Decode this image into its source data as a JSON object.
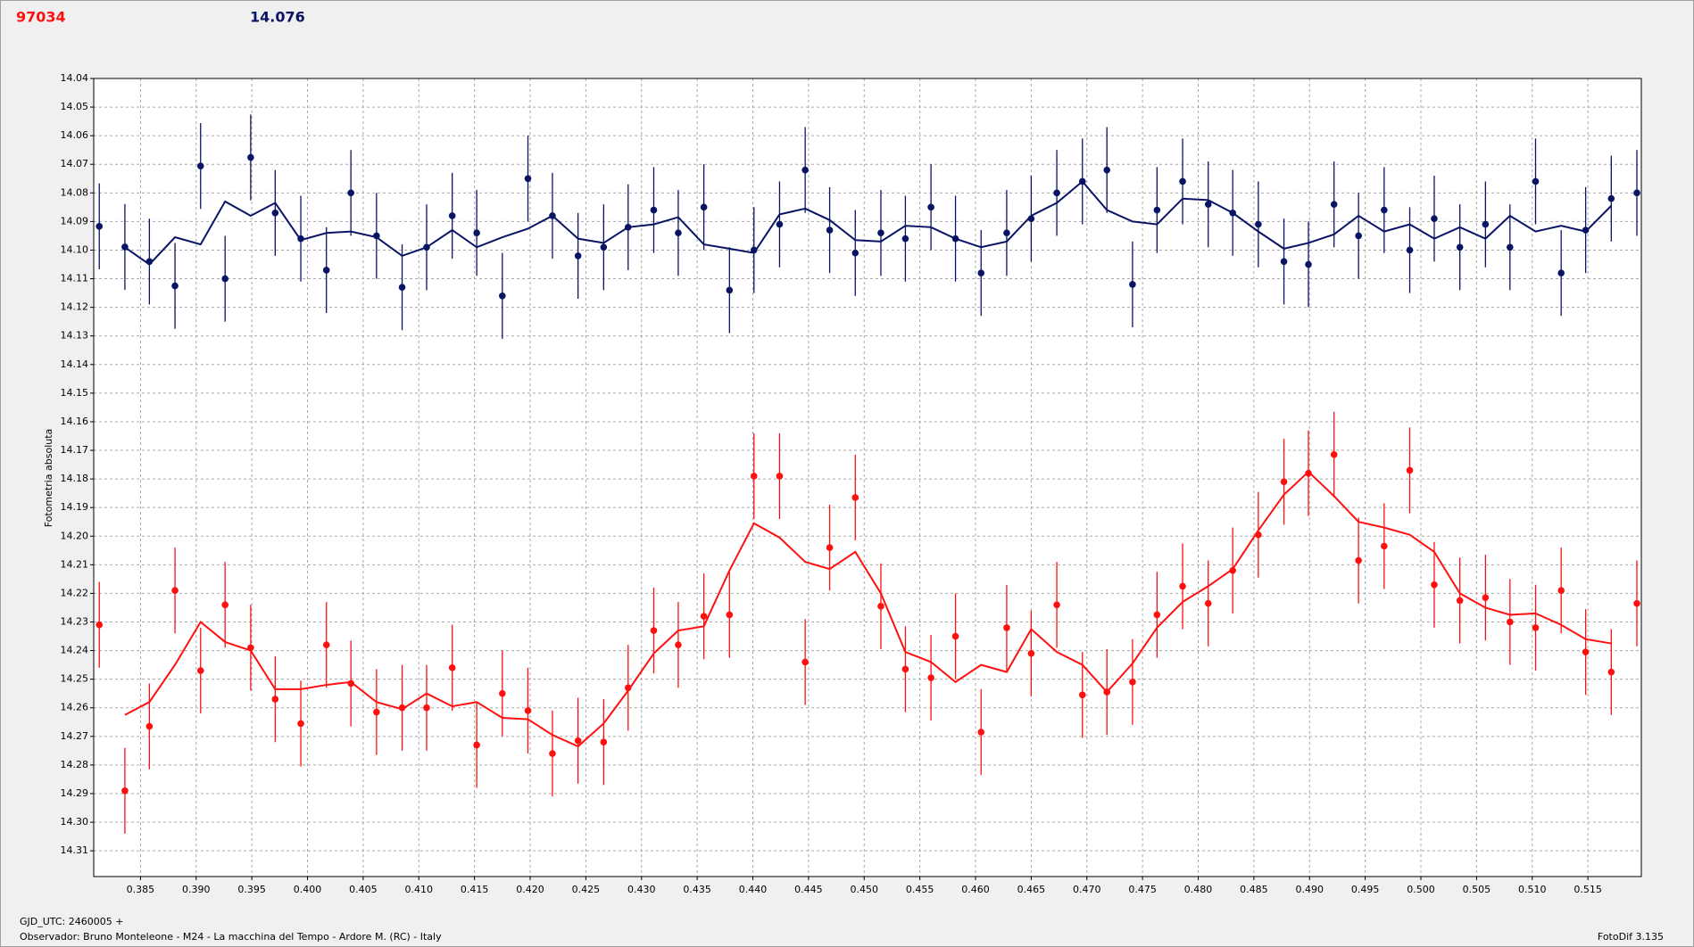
{
  "chart_data": {
    "type": "scatter",
    "header_left": "97034",
    "header_right": "14.076",
    "ylabel": "Fotometria absoluta",
    "xlabel": "GJD_UTC: 2460005 +",
    "footer_observer": "Observador: Bruno Monteleone - M24 - La macchina del Tempo - Ardore M. (RC) - Italy",
    "footer_software": "FotoDif 3.135",
    "xlim": [
      0.3808,
      0.5198
    ],
    "ylim": [
      14.319,
      14.04
    ],
    "grid": true,
    "x": [
      0.3813,
      0.3836,
      0.3858,
      0.3881,
      0.3904,
      0.3926,
      0.3949,
      0.3971,
      0.3994,
      0.4017,
      0.4039,
      0.4062,
      0.4085,
      0.4107,
      0.413,
      0.4152,
      0.4175,
      0.4198,
      0.422,
      0.4243,
      0.4266,
      0.4288,
      0.4311,
      0.4333,
      0.4356,
      0.4379,
      0.4401,
      0.4424,
      0.4447,
      0.4469,
      0.4492,
      0.4515,
      0.4537,
      0.456,
      0.4582,
      0.4605,
      0.4628,
      0.465,
      0.4673,
      0.4696,
      0.4718,
      0.4741,
      0.4763,
      0.4786,
      0.4809,
      0.4831,
      0.4854,
      0.4877,
      0.4899,
      0.4922,
      0.4944,
      0.4967,
      0.499,
      0.5012,
      0.5035,
      0.5058,
      0.508,
      0.5103,
      0.5126,
      0.5148,
      0.5171,
      0.5194
    ],
    "xticks": [
      0.385,
      {
        "value": 0.39,
        "label": "0.390"
      },
      0.395,
      {
        "value": 0.4,
        "label": "0.400"
      },
      0.405,
      {
        "value": 0.41,
        "label": "0.410"
      },
      0.415,
      {
        "value": 0.42,
        "label": "0.420"
      },
      0.425,
      {
        "value": 0.43,
        "label": "0.430"
      },
      0.435,
      {
        "value": 0.44,
        "label": "0.440"
      },
      0.445,
      {
        "value": 0.45,
        "label": "0.450"
      },
      0.455,
      {
        "value": 0.46,
        "label": "0.460"
      },
      0.465,
      {
        "value": 0.47,
        "label": "0.470"
      },
      0.475,
      {
        "value": 0.48,
        "label": "0.480"
      },
      0.485,
      {
        "value": 0.49,
        "label": "0.490"
      },
      0.495,
      {
        "value": 0.5,
        "label": "0.500"
      },
      0.505,
      {
        "value": 0.51,
        "label": "0.510"
      },
      0.515
    ],
    "yticks": [
      14.04,
      14.05,
      14.06,
      14.07,
      14.08,
      14.09,
      {
        "value": 14.1,
        "label": "14.10"
      },
      14.11,
      14.12,
      14.13,
      14.14,
      14.15,
      14.16,
      14.17,
      14.18,
      14.19,
      {
        "value": 14.2,
        "label": "14.20"
      },
      14.21,
      14.22,
      14.23,
      14.24,
      14.25,
      14.26,
      14.27,
      14.28,
      14.29,
      {
        "value": 14.3,
        "label": "14.30"
      },
      14.31
    ],
    "series": [
      {
        "mode": "markers",
        "color": "#0a1464",
        "error": 0.015,
        "values": [
          14.0917,
          14.0989,
          14.104,
          14.1125,
          14.0706,
          14.11,
          14.0676,
          14.087,
          14.096,
          14.107,
          14.08,
          14.095,
          14.113,
          14.099,
          14.088,
          14.094,
          14.116,
          14.075,
          14.088,
          14.102,
          14.099,
          14.092,
          14.086,
          14.094,
          14.085,
          14.114,
          14.1,
          14.091,
          14.072,
          14.093,
          14.101,
          14.094,
          14.096,
          14.085,
          14.096,
          14.108,
          14.094,
          14.089,
          14.08,
          14.076,
          14.072,
          14.112,
          14.086,
          14.076,
          14.084,
          14.087,
          14.091,
          14.104,
          14.105,
          14.084,
          14.095,
          14.086,
          14.1,
          14.089,
          14.099,
          14.091,
          14.099,
          14.076,
          14.108,
          14.093,
          14.082,
          14.08
        ]
      },
      {
        "mode": "line",
        "color": "#0a1464",
        "values": [
          null,
          14.099,
          14.105,
          14.0955,
          14.098,
          14.083,
          14.088,
          14.0835,
          14.0965,
          14.094,
          14.0935,
          14.0955,
          14.102,
          14.099,
          14.093,
          14.099,
          14.0955,
          14.0925,
          14.088,
          14.096,
          14.0975,
          14.092,
          14.091,
          14.0885,
          14.098,
          14.0995,
          14.101,
          14.0875,
          14.0855,
          14.0895,
          14.0965,
          14.097,
          14.0915,
          14.092,
          14.096,
          14.099,
          14.097,
          14.088,
          14.0835,
          14.076,
          14.086,
          14.09,
          14.091,
          14.082,
          14.0825,
          14.087,
          14.0935,
          14.0995,
          14.0975,
          14.0945,
          14.088,
          14.0935,
          14.091,
          14.096,
          14.092,
          14.096,
          14.088,
          14.0935,
          14.0915,
          14.0935,
          14.0845,
          null
        ]
      },
      {
        "mode": "markers",
        "color": "#ff1010",
        "error": 0.015,
        "values": [
          14.231,
          14.289,
          14.2665,
          14.219,
          14.247,
          14.224,
          14.239,
          14.257,
          14.2655,
          14.238,
          14.2515,
          14.2615,
          14.26,
          14.26,
          14.246,
          14.273,
          14.255,
          14.261,
          14.276,
          14.2715,
          14.272,
          14.253,
          14.233,
          14.238,
          14.228,
          14.2275,
          14.179,
          14.179,
          14.244,
          14.204,
          14.1865,
          14.2245,
          14.2465,
          14.2495,
          14.235,
          14.2685,
          14.232,
          14.241,
          14.224,
          14.2555,
          14.2545,
          14.251,
          14.2275,
          14.2175,
          14.2235,
          14.212,
          14.1995,
          14.181,
          14.178,
          14.1715,
          14.2085,
          14.2035,
          14.177,
          14.217,
          14.2225,
          14.2215,
          14.23,
          14.232,
          14.219,
          14.2405,
          14.2475,
          14.2235
        ]
      },
      {
        "mode": "line",
        "color": "#ff1010",
        "values": [
          null,
          14.2625,
          14.258,
          14.245,
          14.23,
          14.237,
          14.24,
          14.2535,
          14.2535,
          14.252,
          14.251,
          14.258,
          14.2605,
          14.255,
          14.2595,
          14.258,
          14.2635,
          14.264,
          14.2695,
          14.2735,
          14.2655,
          14.254,
          14.241,
          14.233,
          14.2315,
          14.212,
          14.1955,
          14.2005,
          14.209,
          14.2115,
          14.2055,
          14.22,
          14.2405,
          14.244,
          14.251,
          14.245,
          14.2475,
          14.2325,
          14.2405,
          14.245,
          14.2545,
          14.2445,
          14.232,
          14.223,
          14.2175,
          14.2115,
          14.198,
          14.1855,
          14.1775,
          14.186,
          14.195,
          14.197,
          14.1995,
          14.2055,
          14.22,
          14.225,
          14.2275,
          14.227,
          14.231,
          14.236,
          14.2375,
          null
        ]
      }
    ]
  }
}
